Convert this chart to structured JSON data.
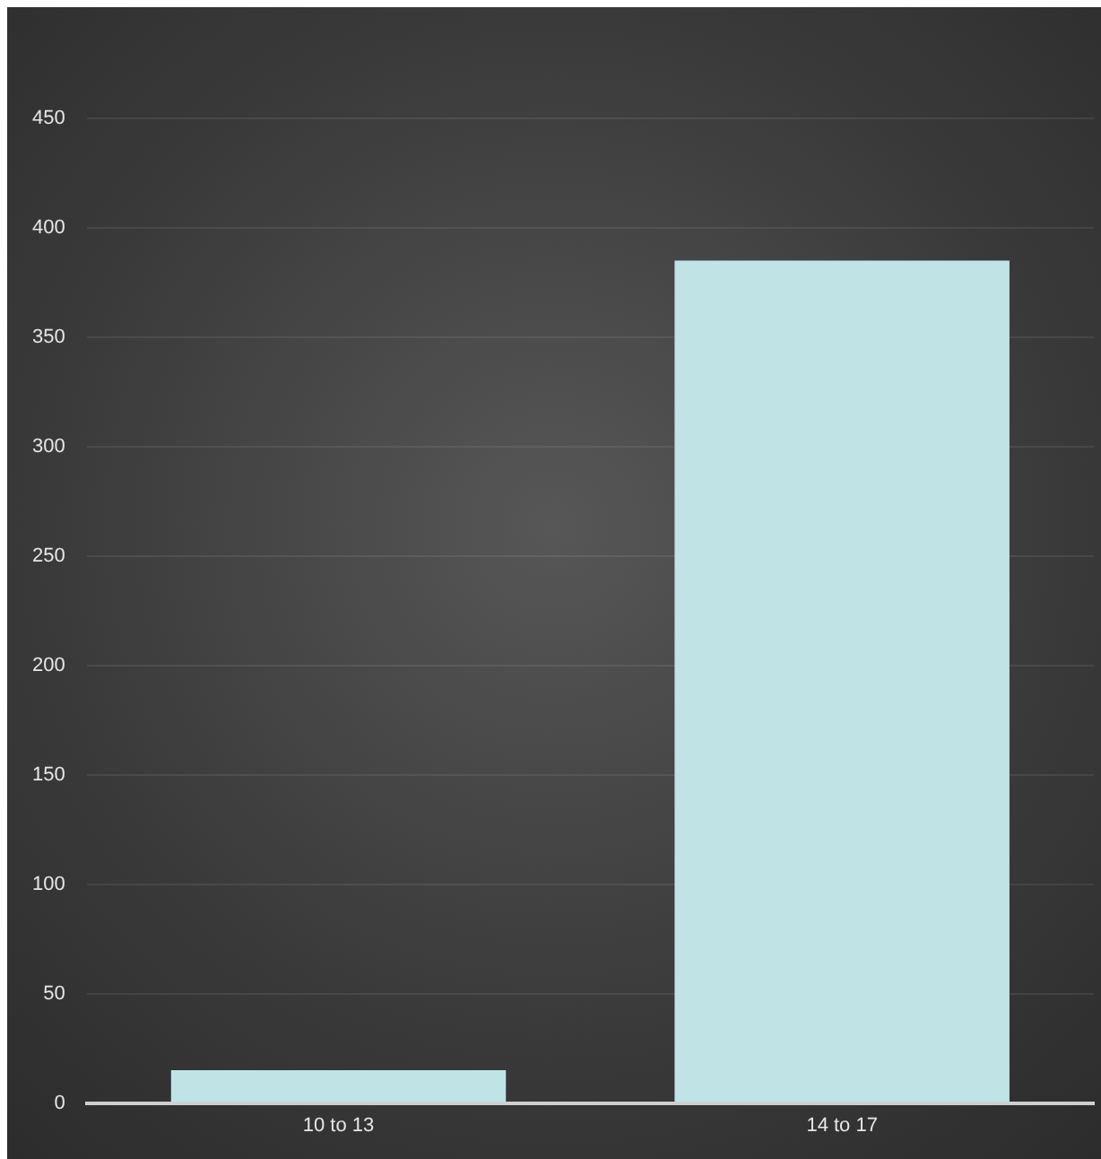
{
  "chart_data": {
    "type": "bar",
    "categories": [
      "10 to 13",
      "14 to 17"
    ],
    "values": [
      15,
      385
    ],
    "color": "#c0e3e6",
    "ylim": [
      0,
      450
    ],
    "yticks": [
      0,
      50,
      100,
      150,
      200,
      250,
      300,
      350,
      400,
      450
    ],
    "grid": "y",
    "legend": false
  }
}
